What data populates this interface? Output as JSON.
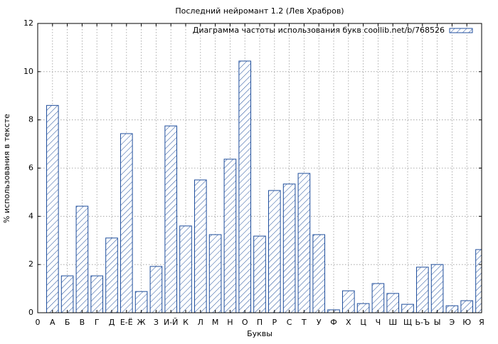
{
  "chart_data": {
    "type": "bar",
    "title": "Последний нейромант 1.2 (Лев Храбров)",
    "x_label": "Буквы",
    "y_label": "% использования в тексте",
    "categories": [
      "0",
      "А",
      "Б",
      "В",
      "Г",
      "Д",
      "Е-Ё",
      "Ж",
      "З",
      "И-Й",
      "К",
      "Л",
      "М",
      "Н",
      "О",
      "П",
      "Р",
      "С",
      "Т",
      "У",
      "Ф",
      "Х",
      "Ц",
      "Ч",
      "Ш",
      "Щ",
      "Ь-Ъ",
      "Ы",
      "Э",
      "Ю",
      "Я"
    ],
    "series": [
      {
        "name": "Диаграмма частоты использования букв coollib.net/b/768526",
        "color": "#1f4e9c",
        "values": [
          null,
          8.6,
          1.53,
          4.42,
          1.53,
          3.1,
          7.43,
          0.88,
          1.92,
          7.75,
          3.6,
          5.51,
          3.24,
          6.37,
          10.44,
          3.18,
          5.07,
          5.34,
          5.78,
          3.24,
          0.12,
          0.91,
          0.38,
          1.21,
          0.8,
          0.35,
          1.89,
          2.0,
          0.29,
          0.5,
          2.62
        ]
      }
    ],
    "xlim": [
      0,
      30
    ],
    "ylim": [
      0,
      12
    ],
    "yticks": [
      0,
      2,
      4,
      6,
      8,
      10,
      12
    ],
    "grid": true,
    "legend": "upper right"
  }
}
